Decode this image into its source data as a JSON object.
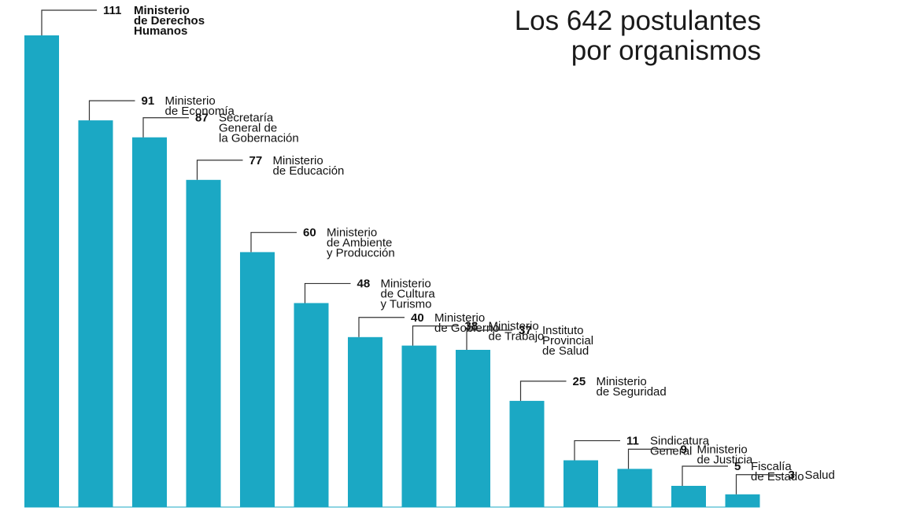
{
  "chart_data": {
    "type": "bar",
    "title_lines": [
      "Los 642 postulantes",
      "por organismos"
    ],
    "xlabel": "",
    "ylabel": "",
    "ylim": [
      0,
      111
    ],
    "grid": false,
    "legend": "none",
    "bar_color": "#1BA8C4",
    "categories": [
      [
        "Ministerio",
        "de Derechos",
        "Humanos"
      ],
      [
        "Ministerio",
        "de Economía"
      ],
      [
        "Secretaría",
        "General de",
        "la Gobernación"
      ],
      [
        "Ministerio",
        "de Educación"
      ],
      [
        "Ministerio",
        "de Ambiente",
        "y Producción"
      ],
      [
        "Ministerio",
        "de Cultura",
        "y Turismo"
      ],
      [
        "Ministerio",
        "de Gobierno"
      ],
      [
        "Ministerio",
        "de Trabajo"
      ],
      [
        "Instituto",
        "Provincial",
        "de Salud"
      ],
      [
        "Ministerio",
        "de Seguridad"
      ],
      [
        "Sindicatura",
        "General"
      ],
      [
        "Ministerio",
        "de Justicia"
      ],
      [
        "Fiscalía",
        "de Estado"
      ],
      [
        "Salud"
      ]
    ],
    "values": [
      111,
      91,
      87,
      77,
      60,
      48,
      40,
      38,
      37,
      25,
      11,
      9,
      5,
      3
    ]
  }
}
